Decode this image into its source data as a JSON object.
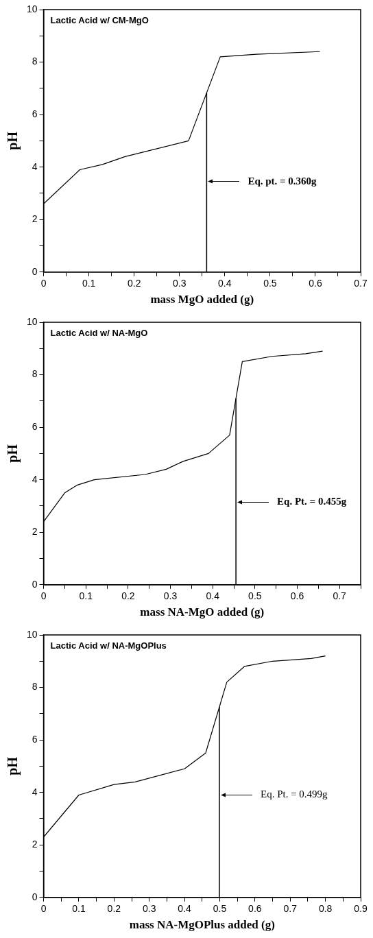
{
  "chart_data": [
    {
      "type": "line",
      "title": "Lactic Acid w/ CM-MgO",
      "xlabel": "mass MgO added (g)",
      "ylabel": "pH",
      "color": "#000000",
      "x": [
        0,
        0.08,
        0.13,
        0.18,
        0.32,
        0.39,
        0.47,
        0.61
      ],
      "values": [
        2.6,
        3.9,
        4.1,
        4.4,
        5.0,
        8.2,
        8.3,
        8.4
      ],
      "xlim": [
        0,
        0.7
      ],
      "xticks": [
        0,
        {
          "value": 0.05,
          "label": null
        },
        0.1,
        {
          "value": 0.15,
          "label": null
        },
        0.2,
        {
          "value": 0.25,
          "label": null
        },
        0.3,
        {
          "value": 0.35,
          "label": null
        },
        0.4,
        {
          "value": 0.45,
          "label": null
        },
        0.5,
        {
          "value": 0.55,
          "label": null
        },
        0.6,
        {
          "value": 0.65,
          "label": null
        },
        0.7
      ],
      "ylim": [
        0,
        10
      ],
      "yticks": [
        0,
        {
          "value": 1,
          "label": null
        },
        2,
        {
          "value": 3,
          "label": null
        },
        4,
        {
          "value": 5,
          "label": null
        },
        6,
        {
          "value": 7,
          "label": null
        },
        8,
        {
          "value": 9,
          "label": null
        },
        10
      ],
      "ref_lines": [
        {
          "axis": "x",
          "value": 0.36
        }
      ],
      "annotations": [
        "Eq. pt. = 0.360g"
      ],
      "grid": false,
      "legend": false,
      "marker": "none",
      "line_style": "solid"
    },
    {
      "type": "line",
      "title": "Lactic Acid w/ NA-MgO",
      "xlabel": "mass NA-MgO added (g)",
      "ylabel": "pH",
      "color": "#000000",
      "x": [
        0,
        0.05,
        0.08,
        0.12,
        0.24,
        0.29,
        0.33,
        0.39,
        0.44,
        0.47,
        0.54,
        0.62,
        0.66
      ],
      "values": [
        2.4,
        3.5,
        3.8,
        4.0,
        4.2,
        4.4,
        4.7,
        5.0,
        5.7,
        8.5,
        8.7,
        8.8,
        8.9
      ],
      "xlim": [
        0,
        0.75
      ],
      "xticks": [
        0,
        {
          "value": 0.05,
          "label": null
        },
        0.1,
        {
          "value": 0.15,
          "label": null
        },
        0.2,
        {
          "value": 0.25,
          "label": null
        },
        0.3,
        {
          "value": 0.35,
          "label": null
        },
        0.4,
        {
          "value": 0.45,
          "label": null
        },
        0.5,
        {
          "value": 0.55,
          "label": null
        },
        0.6,
        {
          "value": 0.65,
          "label": null
        },
        0.7,
        {
          "value": 0.75,
          "label": null
        }
      ],
      "ylim": [
        0,
        10
      ],
      "yticks": [
        0,
        {
          "value": 1,
          "label": null
        },
        2,
        {
          "value": 3,
          "label": null
        },
        4,
        {
          "value": 5,
          "label": null
        },
        6,
        {
          "value": 7,
          "label": null
        },
        8,
        {
          "value": 9,
          "label": null
        },
        10
      ],
      "ref_lines": [
        {
          "axis": "x",
          "value": 0.455
        }
      ],
      "annotations": [
        "Eq. Pt. = 0.455g"
      ],
      "grid": false,
      "legend": false,
      "marker": "none",
      "line_style": "solid"
    },
    {
      "type": "line",
      "title": "Lactic Acid w/ NA-MgOPlus",
      "xlabel": "mass NA-MgOPlus added (g)",
      "ylabel": "pH",
      "color": "#000000",
      "x": [
        0,
        0.1,
        0.2,
        0.26,
        0.4,
        0.46,
        0.52,
        0.57,
        0.65,
        0.76,
        0.8
      ],
      "values": [
        2.3,
        3.9,
        4.3,
        4.4,
        4.9,
        5.5,
        8.2,
        8.8,
        9.0,
        9.1,
        9.2
      ],
      "xlim": [
        0,
        0.9
      ],
      "xticks": [
        0,
        {
          "value": 0.05,
          "label": null
        },
        0.1,
        {
          "value": 0.15,
          "label": null
        },
        0.2,
        {
          "value": 0.25,
          "label": null
        },
        0.3,
        {
          "value": 0.35,
          "label": null
        },
        0.4,
        {
          "value": 0.45,
          "label": null
        },
        0.5,
        {
          "value": 0.55,
          "label": null
        },
        0.6,
        {
          "value": 0.65,
          "label": null
        },
        0.7,
        {
          "value": 0.75,
          "label": null
        },
        0.8,
        {
          "value": 0.85,
          "label": null
        },
        0.9
      ],
      "ylim": [
        0,
        10
      ],
      "yticks": [
        0,
        {
          "value": 1,
          "label": null
        },
        2,
        {
          "value": 3,
          "label": null
        },
        4,
        {
          "value": 5,
          "label": null
        },
        6,
        {
          "value": 7,
          "label": null
        },
        8,
        {
          "value": 9,
          "label": null
        },
        10
      ],
      "ref_lines": [
        {
          "axis": "x",
          "value": 0.499
        }
      ],
      "annotations": [
        "Eq. Pt. = 0.499g"
      ],
      "grid": false,
      "legend": false,
      "marker": "none",
      "line_style": "solid"
    }
  ]
}
